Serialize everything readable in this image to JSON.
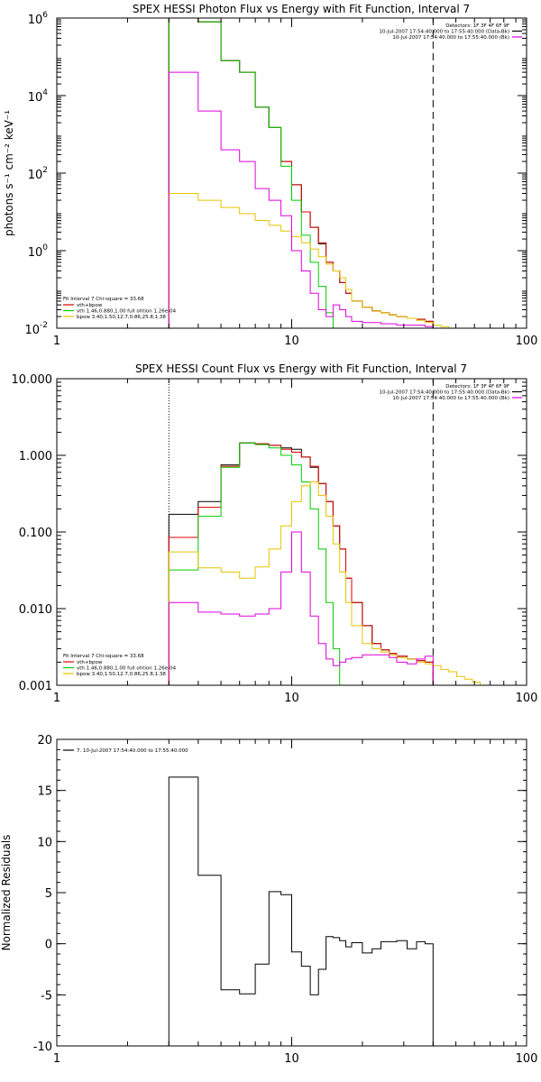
{
  "colors": {
    "data": "#000000",
    "thermal": "#00cc00",
    "powerlaw": "#e6c300",
    "total": "#dd0000",
    "background": "#dd00dd"
  },
  "chart_data": [
    {
      "type": "line",
      "title": "SPEX HESSI Photon Flux vs Energy with Fit Function, Interval 7",
      "ylabel": "photons s⁻¹ cm⁻² keV⁻¹",
      "xscale": "log",
      "yscale": "log",
      "xlim": [
        1,
        100
      ],
      "ylim": [
        0.01,
        1000000
      ],
      "xticks": [
        {
          "v": 1,
          "label": "1"
        },
        {
          "v": 10,
          "label": "10"
        },
        {
          "v": 100,
          "label": "100"
        }
      ],
      "yticks": [
        {
          "v": 0.01,
          "base": "10",
          "exp": "-2"
        },
        {
          "v": 1,
          "base": "10",
          "exp": "0"
        },
        {
          "v": 100,
          "base": "10",
          "exp": "2"
        },
        {
          "v": 10000,
          "base": "10",
          "exp": "4"
        },
        {
          "v": 1000000,
          "base": "10",
          "exp": "6"
        }
      ],
      "vlines": [
        {
          "x": 3,
          "style": "dotted"
        },
        {
          "x": 40,
          "style": "dashed"
        }
      ],
      "legend_right": [
        "Detectors: 1F 3F 4F 6F 9F",
        "10-Jul-2007 17:54:40.000 to 17:55:40.000 (Data-Bk)",
        "10-Jul-2007 17:54:40.000 to 17:55:40.000 (Bk)"
      ],
      "legend_left_title": "Fit Interval 7   Chi-square = 33.68",
      "legend_left": [
        "vth+bpow",
        "vth 1.46,0.880,1.00  full ohtion 1.26e-04",
        "bpow 3.40,1.50,12.7,0.86,25.8,1.38"
      ],
      "energy_edges": [
        3,
        4,
        5,
        6,
        7,
        8,
        9,
        10,
        11,
        12,
        13,
        14,
        15,
        16,
        17,
        18,
        20,
        22,
        24,
        26,
        28,
        31,
        34,
        37,
        40
      ],
      "series": [
        {
          "name": "Data-Bk",
          "key": "data",
          "values": [
            2000000,
            800000,
            80000,
            40000,
            5000,
            1500,
            200,
            50,
            10,
            4,
            1.5,
            0.5,
            0.3,
            0.15,
            0.08,
            0.05,
            0.035,
            0.028,
            0.025,
            0.022,
            0.02,
            0.018,
            0.017,
            0.015
          ]
        },
        {
          "name": "vth+bpow",
          "key": "total",
          "values": [
            2000000,
            800000,
            80000,
            40000,
            5000,
            1500,
            200,
            50,
            10,
            4,
            1.6,
            0.5,
            0.3,
            0.15,
            0.08,
            0.05,
            0.035,
            0.028,
            0.025,
            0.022,
            0.02,
            0.018,
            0.017,
            0.015
          ]
        },
        {
          "name": "vth",
          "key": "thermal",
          "values": [
            2000000,
            800000,
            80000,
            40000,
            5000,
            1500,
            150,
            20,
            2.5,
            0.5,
            0.12,
            0.025,
            0.005
          ]
        },
        {
          "name": "bpow",
          "key": "powerlaw",
          "values": [
            30,
            20,
            13,
            9,
            6,
            4.5,
            3.2,
            2.3,
            1.6,
            1.1,
            0.7,
            0.45,
            0.3,
            0.2,
            0.1,
            0.05,
            0.035,
            0.028,
            0.025,
            0.022,
            0.02,
            0.018,
            0.016,
            0.014,
            0.012,
            0.011,
            0.01
          ]
        },
        {
          "name": "Bk",
          "key": "background",
          "values": [
            40000,
            4000,
            400,
            200,
            40,
            20,
            8,
            1,
            0.3,
            0.08,
            0.03,
            0.02,
            0.04,
            0.03,
            0.02,
            0.015,
            0.014,
            0.014,
            0.013,
            0.013,
            0.012,
            0.012,
            0.012,
            0.011
          ]
        }
      ]
    },
    {
      "type": "line",
      "title": "SPEX HESSI Count Flux vs Energy with Fit Function, Interval 7",
      "ylabel": "",
      "xscale": "log",
      "yscale": "log",
      "xlim": [
        1,
        100
      ],
      "ylim": [
        0.001,
        10
      ],
      "xticks": [
        {
          "v": 1,
          "label": "1"
        },
        {
          "v": 10,
          "label": "10"
        },
        {
          "v": 100,
          "label": "100"
        }
      ],
      "yticks": [
        {
          "v": 0.001,
          "label": "0.001"
        },
        {
          "v": 0.01,
          "label": "0.010"
        },
        {
          "v": 0.1,
          "label": "0.100"
        },
        {
          "v": 1,
          "label": "1.000"
        },
        {
          "v": 10,
          "label": "10.000"
        }
      ],
      "vlines": [
        {
          "x": 3,
          "style": "dotted"
        },
        {
          "x": 40,
          "style": "dashed"
        }
      ],
      "legend_right": [
        "Detectors: 1F 3F 4F 6F 9F",
        "10-Jul-2007 17:54:40.000 to 17:55:40.000 (Data-Bk)",
        "10-Jul-2007 17:54:40.000 to 17:55:40.000 (Bk)"
      ],
      "legend_left_title": "Fit Interval 7   Chi-square = 33.68",
      "legend_left": [
        "vth+bpow",
        "vth 1.46,0.880,1.00  full ohtion 1.26e-04",
        "bpow 3.40,1.50,12.7,0.86,25.8,1.38"
      ],
      "energy_edges": [
        3,
        4,
        5,
        6,
        7,
        8,
        9,
        10,
        11,
        12,
        13,
        14,
        15,
        16,
        17,
        18,
        20,
        22,
        24,
        26,
        28,
        31,
        34,
        37,
        40
      ],
      "series": [
        {
          "name": "Data-Bk",
          "key": "data",
          "values": [
            0.17,
            0.25,
            0.75,
            1.45,
            1.4,
            1.35,
            1.25,
            1.2,
            0.95,
            0.7,
            0.43,
            0.25,
            0.12,
            0.06,
            0.025,
            0.012,
            0.006,
            0.0035,
            0.0029,
            0.0026,
            0.0024,
            0.0022,
            0.0021,
            0.002
          ]
        },
        {
          "name": "vth+bpow",
          "key": "total",
          "values": [
            0.085,
            0.21,
            0.72,
            1.45,
            1.42,
            1.35,
            1.2,
            1.1,
            0.95,
            0.72,
            0.43,
            0.25,
            0.12,
            0.06,
            0.025,
            0.012,
            0.006,
            0.0035,
            0.0029,
            0.0026,
            0.0024,
            0.0022,
            0.0021,
            0.002
          ]
        },
        {
          "name": "vth",
          "key": "thermal",
          "values": [
            0.032,
            0.16,
            0.7,
            1.45,
            1.38,
            1.25,
            1.0,
            0.75,
            0.45,
            0.2,
            0.06,
            0.012,
            0.003
          ]
        },
        {
          "name": "bpow",
          "key": "powerlaw",
          "values": [
            0.055,
            0.034,
            0.03,
            0.025,
            0.035,
            0.06,
            0.12,
            0.25,
            0.4,
            0.45,
            0.3,
            0.16,
            0.07,
            0.03,
            0.012,
            0.006,
            0.0035,
            0.003,
            0.0027,
            0.0025,
            0.0023,
            0.0022,
            0.002,
            0.0019,
            0.0018,
            0.0016,
            0.0015,
            0.0013,
            0.0012,
            0.0011,
            0.001
          ]
        },
        {
          "name": "Bk",
          "key": "background",
          "values": [
            0.012,
            0.009,
            0.0085,
            0.008,
            0.0085,
            0.01,
            0.03,
            0.1,
            0.03,
            0.008,
            0.0035,
            0.0022,
            0.0018,
            0.002,
            0.0022,
            0.0023,
            0.0025,
            0.0025,
            0.0025,
            0.0023,
            0.002,
            0.0019,
            0.0022,
            0.0024
          ]
        }
      ]
    },
    {
      "type": "line",
      "title": "",
      "ylabel": "Normalized Residuals",
      "xscale": "log",
      "yscale": "linear",
      "xlim": [
        1,
        100
      ],
      "ylim": [
        -10,
        20
      ],
      "xticks": [
        {
          "v": 1,
          "label": "1"
        },
        {
          "v": 10,
          "label": "10"
        },
        {
          "v": 100,
          "label": "100"
        }
      ],
      "yticks": [
        {
          "v": -10,
          "label": "-10"
        },
        {
          "v": -5,
          "label": "-5"
        },
        {
          "v": 0,
          "label": "0"
        },
        {
          "v": 5,
          "label": "5"
        },
        {
          "v": 10,
          "label": "10"
        },
        {
          "v": 15,
          "label": "15"
        },
        {
          "v": 20,
          "label": "20"
        }
      ],
      "legend_line": "7. 10-Jul-2007 17:54:40.000 to 17:55:40.000",
      "energy_edges": [
        3,
        4,
        5,
        6,
        7,
        8,
        9,
        10,
        11,
        12,
        13,
        14,
        15,
        16,
        17,
        18,
        20,
        22,
        24,
        26,
        28,
        31,
        34,
        37,
        40
      ],
      "series": [
        {
          "name": "7. 10-Jul-2007 17:54:40.000 to 17:55:40.000",
          "key": "data",
          "values": [
            16.3,
            6.7,
            -4.5,
            -4.9,
            -2.0,
            5.1,
            4.8,
            -0.8,
            -2.2,
            -5.0,
            -2.5,
            0.7,
            0.6,
            0.3,
            -0.3,
            0.1,
            -0.9,
            -0.5,
            0.2,
            0.2,
            0.3,
            -0.5,
            0.2,
            0.0
          ]
        }
      ]
    }
  ]
}
